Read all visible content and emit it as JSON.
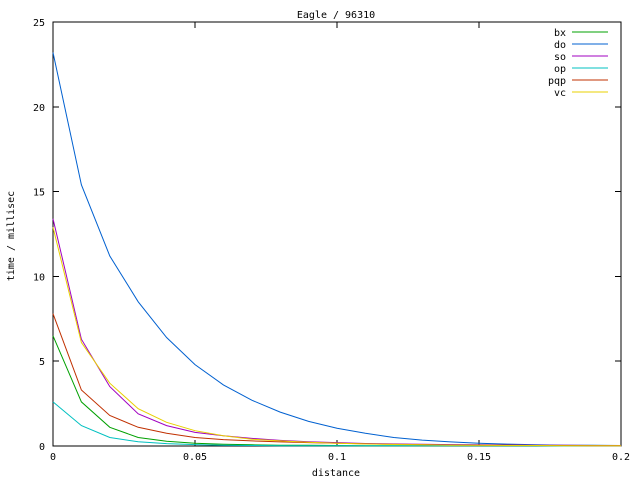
{
  "chart_data": {
    "type": "line",
    "title": "Eagle / 96310",
    "xlabel": "distance",
    "ylabel": "time / millisec",
    "xlim": [
      0,
      0.2
    ],
    "ylim": [
      0,
      25
    ],
    "x_ticks": [
      0,
      0.05,
      0.1,
      0.15,
      0.2
    ],
    "x_tick_labels": [
      "0",
      "0.05",
      "0.1",
      "0.15",
      "0.2"
    ],
    "y_ticks": [
      0,
      5,
      10,
      15,
      20,
      25
    ],
    "y_tick_labels": [
      "0",
      "5",
      "10",
      "15",
      "20",
      "25"
    ],
    "grid": false,
    "legend_position": "top-right",
    "x": [
      0,
      0.01,
      0.02,
      0.03,
      0.04,
      0.05,
      0.06,
      0.07,
      0.08,
      0.09,
      0.1,
      0.11,
      0.12,
      0.13,
      0.14,
      0.15,
      0.16,
      0.17,
      0.18,
      0.19,
      0.2
    ],
    "series": [
      {
        "name": "bx",
        "color": "#00a000",
        "values": [
          6.5,
          2.6,
          1.1,
          0.5,
          0.28,
          0.16,
          0.1,
          0.07,
          0.05,
          0.04,
          0.03,
          0.02,
          0.02,
          0.02,
          0.01,
          0.01,
          0.01,
          0.01,
          0.01,
          0.01,
          0.01
        ]
      },
      {
        "name": "do",
        "color": "#0060d0",
        "values": [
          23.2,
          15.4,
          11.2,
          8.5,
          6.4,
          4.8,
          3.6,
          2.7,
          2.0,
          1.45,
          1.05,
          0.75,
          0.5,
          0.35,
          0.24,
          0.16,
          0.11,
          0.07,
          0.05,
          0.04,
          0.03
        ]
      },
      {
        "name": "so",
        "color": "#a000c0",
        "values": [
          13.4,
          6.3,
          3.5,
          1.9,
          1.2,
          0.8,
          0.6,
          0.45,
          0.33,
          0.25,
          0.2,
          0.15,
          0.12,
          0.1,
          0.08,
          0.07,
          0.06,
          0.05,
          0.04,
          0.03,
          0.03
        ]
      },
      {
        "name": "op",
        "color": "#00c0c0",
        "values": [
          2.6,
          1.2,
          0.5,
          0.25,
          0.14,
          0.08,
          0.05,
          0.03,
          0.02,
          0.02,
          0.01,
          0.01,
          0.01,
          0.01,
          0.01,
          0.01,
          0.01,
          0.01,
          0.0,
          0.0,
          0.0
        ]
      },
      {
        "name": "pqp",
        "color": "#c03000",
        "values": [
          7.8,
          3.3,
          1.8,
          1.1,
          0.75,
          0.5,
          0.38,
          0.3,
          0.24,
          0.2,
          0.16,
          0.13,
          0.1,
          0.08,
          0.06,
          0.05,
          0.04,
          0.03,
          0.03,
          0.02,
          0.02
        ]
      },
      {
        "name": "vc",
        "color": "#e8d000",
        "values": [
          12.9,
          6.1,
          3.7,
          2.2,
          1.4,
          0.9,
          0.6,
          0.4,
          0.3,
          0.22,
          0.16,
          0.12,
          0.09,
          0.07,
          0.05,
          0.04,
          0.03,
          0.03,
          0.02,
          0.02,
          0.01
        ]
      }
    ]
  }
}
